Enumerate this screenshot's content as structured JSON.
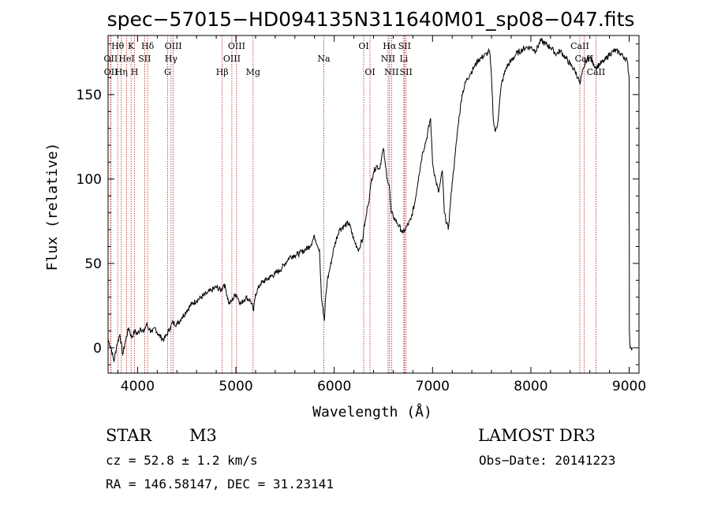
{
  "chart_data": {
    "type": "line",
    "title": "spec−57015−HD094135N311640M01_sp08−047.fits",
    "xlabel": "Wavelength (Å)",
    "ylabel": "Flux (relative)",
    "xlim": [
      3700,
      9100
    ],
    "ylim": [
      -15,
      185
    ],
    "xticks": [
      4000,
      5000,
      6000,
      7000,
      8000,
      9000
    ],
    "yticks": [
      0,
      50,
      100,
      150
    ],
    "grid": false,
    "series": [
      {
        "name": "flux",
        "x": [
          3700,
          3730,
          3760,
          3790,
          3820,
          3850,
          3880,
          3910,
          3940,
          3970,
          4000,
          4030,
          4060,
          4090,
          4120,
          4150,
          4180,
          4210,
          4240,
          4270,
          4300,
          4330,
          4360,
          4400,
          4450,
          4500,
          4550,
          4600,
          4650,
          4700,
          4750,
          4800,
          4850,
          4880,
          4900,
          4930,
          4960,
          5000,
          5050,
          5100,
          5150,
          5180,
          5200,
          5250,
          5300,
          5350,
          5400,
          5450,
          5500,
          5550,
          5600,
          5650,
          5700,
          5750,
          5800,
          5850,
          5870,
          5890,
          5900,
          5910,
          5930,
          5960,
          6000,
          6050,
          6100,
          6150,
          6200,
          6230,
          6250,
          6270,
          6290,
          6300,
          6320,
          6340,
          6360,
          6380,
          6400,
          6430,
          6460,
          6480,
          6500,
          6520,
          6540,
          6560,
          6570,
          6580,
          6600,
          6620,
          6640,
          6660,
          6680,
          6700,
          6720,
          6740,
          6780,
          6820,
          6860,
          6900,
          6940,
          6980,
          7000,
          7030,
          7060,
          7080,
          7100,
          7120,
          7160,
          7200,
          7230,
          7260,
          7300,
          7340,
          7380,
          7420,
          7460,
          7500,
          7550,
          7580,
          7600,
          7620,
          7640,
          7660,
          7680,
          7700,
          7720,
          7750,
          7800,
          7850,
          7900,
          7950,
          8000,
          8050,
          8100,
          8150,
          8200,
          8230,
          8260,
          8300,
          8350,
          8400,
          8450,
          8480,
          8500,
          8520,
          8540,
          8560,
          8600,
          8640,
          8660,
          8700,
          8750,
          8800,
          8850,
          8900,
          8950,
          8980,
          9000,
          9001,
          9002,
          9010,
          9020,
          9030
        ],
        "y": [
          5,
          0,
          -8,
          2,
          8,
          -4,
          5,
          12,
          6,
          10,
          8,
          12,
          9,
          14,
          11,
          9,
          12,
          8,
          6,
          5,
          8,
          12,
          15,
          14,
          18,
          22,
          26,
          28,
          30,
          32,
          34,
          36,
          34,
          38,
          34,
          26,
          28,
          32,
          26,
          30,
          28,
          22,
          32,
          38,
          40,
          42,
          44,
          46,
          50,
          54,
          55,
          56,
          58,
          60,
          66,
          58,
          30,
          20,
          16,
          28,
          40,
          48,
          60,
          70,
          72,
          74,
          64,
          60,
          58,
          62,
          64,
          70,
          76,
          84,
          90,
          100,
          104,
          108,
          106,
          112,
          118,
          108,
          100,
          96,
          88,
          80,
          78,
          76,
          74,
          72,
          70,
          68,
          70,
          72,
          76,
          86,
          102,
          116,
          124,
          136,
          110,
          100,
          92,
          98,
          105,
          80,
          70,
          98,
          114,
          132,
          150,
          158,
          162,
          166,
          170,
          172,
          174,
          176,
          160,
          134,
          128,
          132,
          144,
          156,
          160,
          166,
          170,
          174,
          176,
          178,
          178,
          176,
          182,
          180,
          178,
          176,
          174,
          176,
          172,
          168,
          164,
          160,
          156,
          162,
          166,
          170,
          172,
          168,
          166,
          168,
          170,
          174,
          176,
          175,
          172,
          170,
          160,
          60,
          10,
          0,
          0,
          0
        ]
      }
    ],
    "lines": [
      {
        "label": "Hθ",
        "x": 3798,
        "row": 1
      },
      {
        "label": "OII",
        "x": 3727,
        "row": 2
      },
      {
        "label": "OII",
        "x": 3729,
        "row": 3
      },
      {
        "label": "Hη",
        "x": 3835,
        "row": 3
      },
      {
        "label": "HeI",
        "x": 3889,
        "row": 2
      },
      {
        "label": "K",
        "x": 3934,
        "row": 1
      },
      {
        "label": "H",
        "x": 3969,
        "row": 3
      },
      {
        "label": "SII",
        "x": 4072,
        "row": 2
      },
      {
        "label": "Hδ",
        "x": 4102,
        "row": 1
      },
      {
        "label": "OIII",
        "x": 4363,
        "row": 1
      },
      {
        "label": "Hγ",
        "x": 4341,
        "row": 2
      },
      {
        "label": "G",
        "x": 4305,
        "row": 3
      },
      {
        "label": "Hβ",
        "x": 4861,
        "row": 3
      },
      {
        "label": "OIII",
        "x": 5007,
        "row": 1
      },
      {
        "label": "OIII",
        "x": 4959,
        "row": 2
      },
      {
        "label": "Mg",
        "x": 5175,
        "row": 3
      },
      {
        "label": "Na",
        "x": 5894,
        "row": 2
      },
      {
        "label": "OI",
        "x": 6300,
        "row": 1
      },
      {
        "label": "OI",
        "x": 6364,
        "row": 3
      },
      {
        "label": "Hα",
        "x": 6563,
        "row": 1
      },
      {
        "label": "NII",
        "x": 6548,
        "row": 2
      },
      {
        "label": "NII",
        "x": 6583,
        "row": 3
      },
      {
        "label": "SII",
        "x": 6716,
        "row": 1
      },
      {
        "label": "Li",
        "x": 6708,
        "row": 2
      },
      {
        "label": "SII",
        "x": 6731,
        "row": 3
      },
      {
        "label": "CaII",
        "x": 8498,
        "row": 1
      },
      {
        "label": "CaII",
        "x": 8542,
        "row": 2
      },
      {
        "label": "CaII",
        "x": 8662,
        "row": 3
      }
    ]
  },
  "info": {
    "class_label": "STAR",
    "subclass": "M3",
    "survey": "LAMOST DR3",
    "cz": "cz = 52.8 ± 1.2 km/s",
    "obs_date": "Obs−Date: 20141223",
    "coords": "RA = 146.58147, DEC =  31.23141"
  },
  "colors": {
    "line_marker": "#b00000",
    "spectrum": "#000000",
    "axis": "#000000"
  }
}
